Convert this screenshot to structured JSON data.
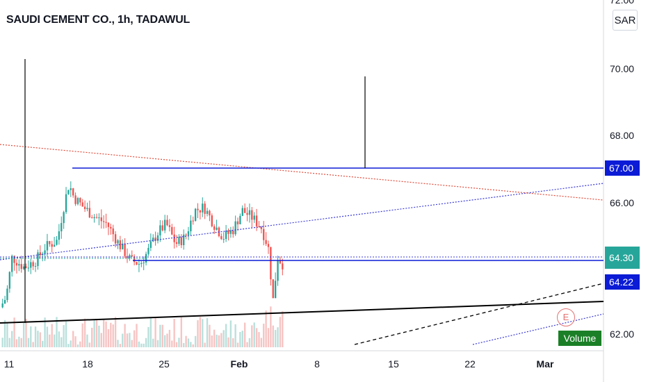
{
  "chart_data": {
    "type": "candlestick",
    "title": "SAUDI CEMENT CO., 1h, TADAWUL",
    "currency": "SAR",
    "y_axis": {
      "ticks": [
        "72.00",
        "70.00",
        "68.00",
        "66.00",
        "62.00"
      ],
      "range": [
        61.8,
        72.3
      ]
    },
    "x_axis": {
      "ticks": [
        "11",
        "18",
        "25",
        "Feb",
        "8",
        "15",
        "22",
        "Mar"
      ]
    },
    "price_badges": [
      {
        "label": "67.00",
        "color": "#0b1bd6"
      },
      {
        "label": "64.30",
        "color": "#26a69a"
      },
      {
        "label": "64.22",
        "color": "#0b1bd6"
      }
    ],
    "volume_label": "Volume",
    "event_label": "E",
    "colors": {
      "up": "#26a69a",
      "down": "#ef5350",
      "volume_up": "#b9e0dc",
      "volume_down": "#f6c4c3",
      "blue_line": "#0b1bd6",
      "red_dotted": "#e04b3a",
      "blue_dotted": "#3a3ad6"
    },
    "series": [
      {
        "name": "price",
        "ohlc_from": 63.0,
        "note_path": [
          [
            0,
            63.1
          ],
          [
            5,
            63.4
          ],
          [
            10,
            64.6
          ],
          [
            20,
            64.3
          ],
          [
            30,
            64.5
          ],
          [
            38,
            64.9
          ],
          [
            48,
            65.1
          ],
          [
            54,
            66.2
          ],
          [
            58,
            66.8
          ],
          [
            62,
            66.4
          ],
          [
            70,
            66.1
          ],
          [
            80,
            65.8
          ],
          [
            90,
            65.6
          ],
          [
            100,
            65.0
          ],
          [
            110,
            64.5
          ],
          [
            118,
            64.4
          ],
          [
            125,
            64.8
          ],
          [
            132,
            65.3
          ],
          [
            140,
            65.6
          ],
          [
            148,
            65.0
          ],
          [
            156,
            65.2
          ],
          [
            164,
            66.0
          ],
          [
            172,
            66.1
          ],
          [
            180,
            65.6
          ],
          [
            188,
            65.2
          ],
          [
            196,
            65.4
          ],
          [
            204,
            66.0
          ],
          [
            212,
            65.8
          ],
          [
            220,
            65.5
          ],
          [
            226,
            64.9
          ],
          [
            230,
            63.3
          ],
          [
            234,
            64.6
          ],
          [
            238,
            64.4
          ]
        ]
      }
    ],
    "level_lines": [
      {
        "kind": "horizontal",
        "value": 67.0,
        "color": "#0b1bd6"
      },
      {
        "kind": "horizontal",
        "value": 64.22,
        "color": "#0b1bd6"
      },
      {
        "kind": "horizontal_dotted",
        "value": 64.3,
        "color": "#26a69a"
      }
    ]
  }
}
